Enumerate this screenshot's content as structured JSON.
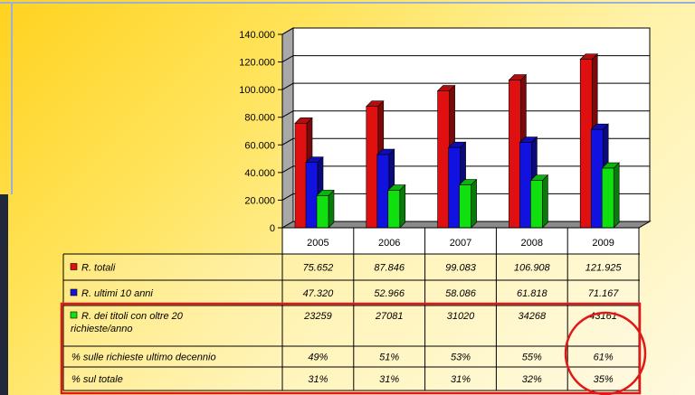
{
  "chart_data": {
    "type": "bar",
    "categories": [
      "2005",
      "2006",
      "2007",
      "2008",
      "2009"
    ],
    "series": [
      {
        "name": "R. totali",
        "color": "#e01010",
        "values": [
          75652,
          87846,
          99083,
          106908,
          121925
        ]
      },
      {
        "name": "R. ultimi 10 anni",
        "color": "#1212e0",
        "values": [
          47320,
          52966,
          58086,
          61818,
          71167
        ]
      },
      {
        "name": "R. dei titoli con oltre 20 richieste/anno",
        "color": "#10e010",
        "values": [
          23259,
          27081,
          31020,
          34268,
          43161
        ]
      }
    ],
    "ylim": [
      0,
      140000
    ],
    "yticks": [
      {
        "value": 0,
        "label": "0"
      },
      {
        "value": 20000,
        "label": "20.000"
      },
      {
        "value": 40000,
        "label": "40.000"
      },
      {
        "value": 60000,
        "label": "60.000"
      },
      {
        "value": 80000,
        "label": "80.000"
      },
      {
        "value": 100000,
        "label": "100.000"
      },
      {
        "value": 120000,
        "label": "120.000"
      },
      {
        "value": 140000,
        "label": "140.000"
      }
    ],
    "grid": true,
    "data_table": {
      "rows": [
        {
          "label": "R. totali",
          "color": "#e01010",
          "cells": [
            "75.652",
            "87.846",
            "99.083",
            "106.908",
            "121.925"
          ]
        },
        {
          "label": "R. ultimi 10 anni",
          "color": "#1212e0",
          "cells": [
            "47.320",
            "52.966",
            "58.086",
            "61.818",
            "71.167"
          ]
        },
        {
          "label_lines": [
            "R. dei titoli con oltre 20",
            "richieste/anno"
          ],
          "color": "#10e010",
          "cells": [
            "23259",
            "27081",
            "31020",
            "34268",
            "43161"
          ]
        },
        {
          "label": "% sulle richieste ultimo decennio",
          "color": "",
          "cells": [
            "49%",
            "51%",
            "53%",
            "55%",
            "61%"
          ]
        },
        {
          "label": "% sul totale",
          "color": "",
          "cells": [
            "31%",
            "31%",
            "31%",
            "32%",
            "35%"
          ]
        }
      ]
    },
    "annotations": {
      "highlight_box_color": "#e01818",
      "highlight_circle_color": "#e01818"
    }
  }
}
